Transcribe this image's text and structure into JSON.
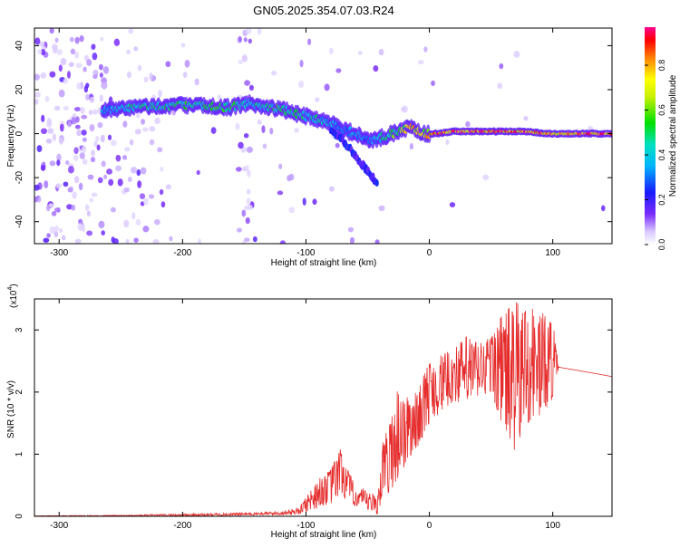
{
  "title": "GN05.2025.354.07.03.R24",
  "chart_data": [
    {
      "type": "heatmap",
      "title": "GN05.2025.354.07.03.R24",
      "xlabel": "Height of straight line (km)",
      "ylabel": "Frequency (Hz)",
      "xlim": [
        -320,
        148
      ],
      "ylim": [
        -50,
        48
      ],
      "x_ticks": [
        "-300",
        "-200",
        "-100",
        "0",
        "100"
      ],
      "x_tick_values": [
        -300,
        -200,
        -100,
        0,
        100
      ],
      "y_ticks": [
        "40",
        "20",
        "0",
        "-20",
        "-40"
      ],
      "y_tick_values": [
        40,
        20,
        0,
        -20,
        -40
      ],
      "colorbar": {
        "label": "Normalized spectral amplitude",
        "range": [
          0,
          0.97
        ],
        "ticks": [
          "0.0",
          "0.2",
          "0.4",
          "0.6",
          "0.8"
        ],
        "tick_values": [
          0.0,
          0.2,
          0.4,
          0.6,
          0.8
        ]
      },
      "ridge": {
        "x": [
          -265,
          -240,
          -200,
          -160,
          -145,
          -140,
          -120,
          -100,
          -80,
          -70,
          -60,
          -50,
          -45,
          -35,
          -25,
          -15,
          -5,
          5,
          20,
          40,
          60,
          80,
          95,
          148
        ],
        "frequency": [
          10,
          12,
          13,
          12,
          14,
          13,
          11,
          8,
          5,
          2,
          0,
          -3,
          -3,
          -1,
          1,
          3,
          0,
          0,
          1,
          1,
          1,
          1,
          0,
          0
        ],
        "amplitude": [
          0.35,
          0.45,
          0.5,
          0.5,
          0.4,
          0.45,
          0.5,
          0.5,
          0.4,
          0.35,
          0.4,
          0.3,
          0.35,
          0.5,
          0.6,
          0.8,
          0.7,
          0.85,
          0.85,
          0.85,
          0.85,
          0.85,
          0.8,
          0.9
        ]
      },
      "secondary_branch": {
        "x": [
          -80,
          -70,
          -60,
          -50,
          -42
        ],
        "frequency": [
          2,
          -3,
          -10,
          -17,
          -23
        ]
      }
    },
    {
      "type": "line",
      "xlabel": "Height of straight line (km)",
      "ylabel": "SNR (10 * v/v)",
      "y_scale_label": "(x10",
      "y_scale_exponent": "4",
      "xlim": [
        -320,
        148
      ],
      "ylim": [
        0,
        3.5
      ],
      "x_ticks": [
        "-300",
        "-200",
        "-100",
        "0",
        "100"
      ],
      "x_tick_values": [
        -300,
        -200,
        -100,
        0,
        100
      ],
      "y_ticks": [
        "0",
        "1",
        "2",
        "3"
      ],
      "y_tick_values": [
        0,
        1,
        2,
        3
      ],
      "series": [
        {
          "name": "SNR",
          "color": "#e52b2b",
          "envelope": {
            "x": [
              -320,
              -250,
              -200,
              -150,
              -120,
              -105,
              -100,
              -90,
              -80,
              -72,
              -65,
              -60,
              -50,
              -42,
              -38,
              -32,
              -25,
              -20,
              -10,
              0,
              10,
              20,
              30,
              40,
              50,
              60,
              70,
              80,
              90,
              100,
              105,
              120,
              148
            ],
            "low": [
              0,
              0,
              0,
              0.01,
              0.02,
              0.03,
              0.05,
              0.15,
              0.2,
              0.35,
              0.2,
              0.15,
              0.05,
              0.02,
              0.3,
              0.4,
              0.6,
              0.8,
              1.1,
              1.5,
              1.7,
              1.85,
              1.8,
              1.9,
              2.0,
              1.4,
              1.0,
              1.5,
              1.6,
              1.9,
              2.4,
              2.35,
              2.25
            ],
            "high": [
              0.01,
              0.02,
              0.04,
              0.06,
              0.08,
              0.15,
              0.35,
              0.6,
              0.75,
              1.1,
              0.7,
              0.5,
              0.4,
              0.35,
              1.2,
              1.5,
              2.15,
              1.9,
              2.0,
              2.5,
              2.6,
              2.7,
              2.9,
              2.8,
              2.9,
              3.3,
              3.45,
              3.4,
              3.3,
              3.15,
              2.4,
              2.35,
              2.25
            ]
          }
        }
      ]
    }
  ]
}
